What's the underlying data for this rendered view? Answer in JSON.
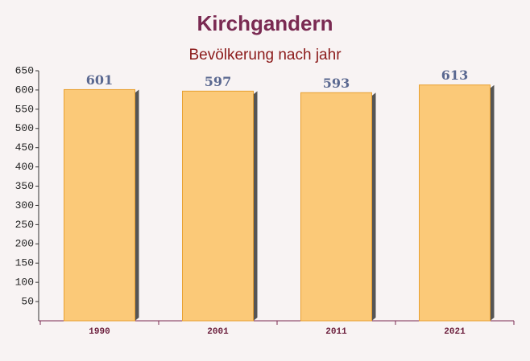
{
  "chart_data": {
    "type": "bar",
    "title": "Kirchgandern",
    "subtitle": "Bevölkerung nach jahr",
    "categories": [
      "1990",
      "2001",
      "2011",
      "2021"
    ],
    "values": [
      601,
      597,
      593,
      613
    ],
    "color": "#fbc46a",
    "ylim": [
      0,
      650
    ],
    "yticks": [
      50,
      100,
      150,
      200,
      250,
      300,
      350,
      400,
      450,
      500,
      550,
      600,
      650
    ],
    "grid": false
  }
}
